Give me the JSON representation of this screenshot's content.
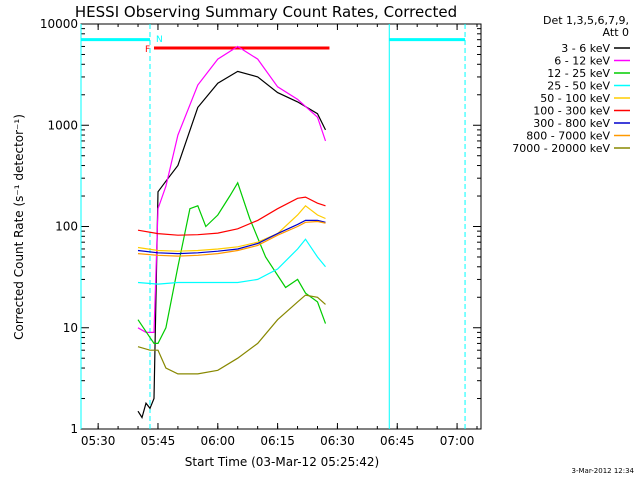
{
  "chart_data": {
    "type": "line",
    "title": "HESSI Observing Summary Count Rates, Corrected",
    "xlabel": "Start Time (03-Mar-12 05:25:42)",
    "ylabel": "Corrected Count Rate (s⁻¹ detector⁻¹)",
    "x_unit": "UT time",
    "xlim": [
      "05:25:42",
      "07:06:00"
    ],
    "ylim": [
      1,
      10000
    ],
    "yscale": "log",
    "grid": false,
    "x_ticks": [
      "05:30",
      "05:45",
      "06:00",
      "06:15",
      "06:30",
      "06:45",
      "07:00"
    ],
    "y_ticks": [
      "1",
      "10",
      "100",
      "1000",
      "10000"
    ],
    "legend": {
      "placement": "top-right outside",
      "header": [
        "Det 1,3,5,6,7,9,",
        "Att 0"
      ]
    },
    "series": [
      {
        "name": "3 - 6 keV",
        "color": "#000000",
        "x": [
          "05:40",
          "05:41",
          "05:42",
          "05:43",
          "05:44",
          "05:45",
          "05:47",
          "05:50",
          "05:55",
          "06:00",
          "06:05",
          "06:10",
          "06:15",
          "06:20",
          "06:25",
          "06:27"
        ],
        "y": [
          1.5,
          1.3,
          1.8,
          1.6,
          2,
          220,
          280,
          400,
          1500,
          2600,
          3400,
          3000,
          2100,
          1700,
          1300,
          900
        ]
      },
      {
        "name": "6 - 12 keV",
        "color": "#ff00ff",
        "x": [
          "05:40",
          "05:42",
          "05:44",
          "05:45",
          "05:47",
          "05:50",
          "05:55",
          "06:00",
          "06:05",
          "06:10",
          "06:15",
          "06:20",
          "06:25",
          "06:27"
        ],
        "y": [
          10,
          9,
          9,
          150,
          250,
          800,
          2500,
          4500,
          6000,
          4500,
          2400,
          1800,
          1200,
          700
        ]
      },
      {
        "name": "12 - 25 keV",
        "color": "#00cc00",
        "x": [
          "05:40",
          "05:43",
          "05:44",
          "05:45",
          "05:47",
          "05:50",
          "05:53",
          "05:55",
          "05:57",
          "06:00",
          "06:03",
          "06:05",
          "06:08",
          "06:12",
          "06:17",
          "06:20",
          "06:22",
          "06:25",
          "06:27"
        ],
        "y": [
          12,
          8,
          7,
          7,
          10,
          40,
          150,
          160,
          100,
          130,
          200,
          270,
          120,
          50,
          25,
          30,
          22,
          18,
          11
        ]
      },
      {
        "name": "25 - 50 keV",
        "color": "#00ffff",
        "x": [
          "05:40",
          "05:45",
          "05:50",
          "05:55",
          "06:00",
          "06:05",
          "06:10",
          "06:15",
          "06:20",
          "06:22",
          "06:25",
          "06:27"
        ],
        "y": [
          28,
          27,
          28,
          28,
          28,
          28,
          30,
          38,
          60,
          75,
          50,
          40
        ]
      },
      {
        "name": "50 - 100 keV",
        "color": "#ffcc00",
        "x": [
          "05:40",
          "05:45",
          "05:50",
          "05:55",
          "06:00",
          "06:05",
          "06:10",
          "06:15",
          "06:20",
          "06:22",
          "06:25",
          "06:27"
        ],
        "y": [
          62,
          58,
          57,
          58,
          60,
          63,
          70,
          85,
          130,
          160,
          130,
          120
        ]
      },
      {
        "name": "100 - 300 keV",
        "color": "#ff0000",
        "x": [
          "05:40",
          "05:45",
          "05:50",
          "05:55",
          "06:00",
          "06:05",
          "06:10",
          "06:15",
          "06:20",
          "06:22",
          "06:25",
          "06:27"
        ],
        "y": [
          92,
          85,
          82,
          83,
          86,
          95,
          115,
          150,
          190,
          195,
          170,
          160
        ]
      },
      {
        "name": "300 - 800 keV",
        "color": "#0000cc",
        "x": [
          "05:40",
          "05:45",
          "05:50",
          "05:55",
          "06:00",
          "06:05",
          "06:10",
          "06:15",
          "06:20",
          "06:22",
          "06:25",
          "06:27"
        ],
        "y": [
          58,
          55,
          54,
          55,
          57,
          60,
          68,
          85,
          105,
          115,
          115,
          110
        ]
      },
      {
        "name": "800 - 7000 keV",
        "color": "#ff9900",
        "x": [
          "05:40",
          "05:45",
          "05:50",
          "05:55",
          "06:00",
          "06:05",
          "06:10",
          "06:15",
          "06:20",
          "06:22",
          "06:25",
          "06:27"
        ],
        "y": [
          54,
          52,
          51,
          52,
          54,
          58,
          65,
          82,
          100,
          110,
          112,
          108
        ]
      },
      {
        "name": "7000 - 20000 keV",
        "color": "#888800",
        "x": [
          "05:40",
          "05:43",
          "05:45",
          "05:47",
          "05:50",
          "05:55",
          "06:00",
          "06:05",
          "06:10",
          "06:15",
          "06:20",
          "06:22",
          "06:25",
          "06:27"
        ],
        "y": [
          6.5,
          6,
          6,
          4,
          3.5,
          3.5,
          3.8,
          5,
          7,
          12,
          18,
          21,
          20,
          17
        ]
      }
    ],
    "flags": {
      "N_label": "N",
      "F_label": "F",
      "night_intervals": [
        [
          "05:25:42",
          "05:43:00"
        ],
        [
          "06:43:00",
          "07:02:00"
        ]
      ],
      "night_level": 7000,
      "flare_interval": [
        "05:44",
        "06:28"
      ],
      "flare_level": 5800,
      "night_color": "#00ffff",
      "flare_color": "#ff0000"
    },
    "timestamp": "3-Mar-2012 12:34"
  }
}
